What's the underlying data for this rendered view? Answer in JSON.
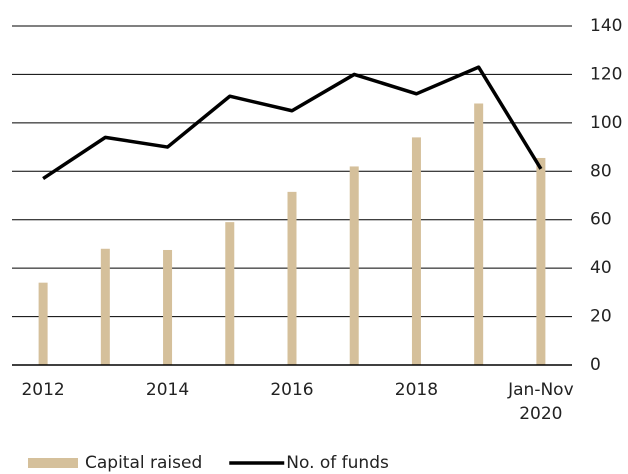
{
  "chart_data": {
    "type": "bar_line",
    "categories": [
      "2012",
      null,
      "2014",
      null,
      "2016",
      null,
      "2018",
      null,
      "Jan-Nov 2020"
    ],
    "series": [
      {
        "name": "Capital raised",
        "type": "bar",
        "color": "#d5c09b",
        "values": [
          34,
          48,
          47.5,
          59,
          71.5,
          82,
          94,
          108,
          85.5
        ]
      },
      {
        "name": "No. of funds",
        "type": "line",
        "color": "#000000",
        "values": [
          77,
          94,
          90,
          111,
          105,
          120,
          112,
          123,
          81
        ]
      }
    ],
    "ylim": [
      0,
      140
    ],
    "yticks": [
      0,
      20,
      40,
      60,
      80,
      100,
      120,
      140
    ],
    "grid": true,
    "y_axis_side": "right",
    "legend": "bottom"
  }
}
